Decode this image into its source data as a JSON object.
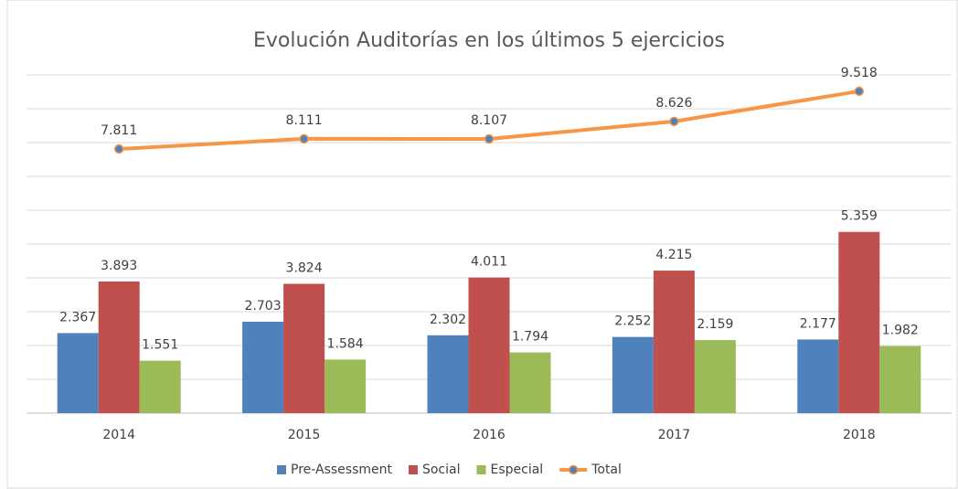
{
  "chart_data": {
    "type": "bar",
    "title": "Evolución Auditorías en los últimos 5 ejercicios",
    "categories": [
      "2014",
      "2015",
      "2016",
      "2017",
      "2018"
    ],
    "series": [
      {
        "name": "Pre-Assessment",
        "color": "#4f81bd",
        "values": [
          2367,
          2703,
          2302,
          2252,
          2177
        ],
        "value_labels": [
          "2.367",
          "2.703",
          "2.302",
          "2.252",
          "2.177"
        ]
      },
      {
        "name": "Social",
        "color": "#c0504d",
        "values": [
          3893,
          3824,
          4011,
          4215,
          5359
        ],
        "value_labels": [
          "3.893",
          "3.824",
          "4.011",
          "4.215",
          "5.359"
        ]
      },
      {
        "name": "Especial",
        "color": "#9bbb59",
        "values": [
          1551,
          1584,
          1794,
          2159,
          1982
        ],
        "value_labels": [
          "1.551",
          "1.584",
          "1.794",
          "2.159",
          "1.982"
        ]
      },
      {
        "name": "Total",
        "type": "line",
        "color": "#f79646",
        "marker_color": "#4f81bd",
        "values": [
          7811,
          8111,
          8107,
          8626,
          9518
        ],
        "value_labels": [
          "7.811",
          "8.111",
          "8.107",
          "8.626",
          "9.518"
        ]
      }
    ],
    "ylim": [
      0,
      10000
    ],
    "yticks": [
      0,
      1000,
      2000,
      3000,
      4000,
      5000,
      6000,
      7000,
      8000,
      9000,
      10000
    ],
    "grid": true,
    "legend": "bottom"
  }
}
